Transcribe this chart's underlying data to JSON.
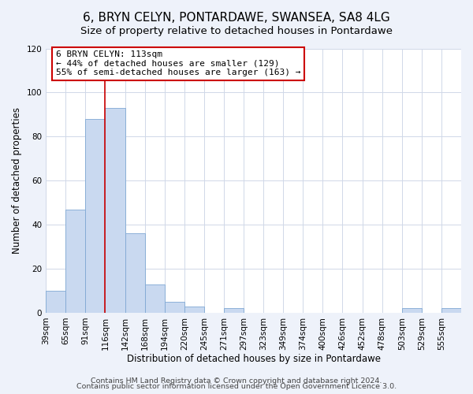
{
  "title": "6, BRYN CELYN, PONTARDAWE, SWANSEA, SA8 4LG",
  "subtitle": "Size of property relative to detached houses in Pontardawe",
  "xlabel": "Distribution of detached houses by size in Pontardawe",
  "ylabel": "Number of detached properties",
  "bin_labels": [
    "39sqm",
    "65sqm",
    "91sqm",
    "116sqm",
    "142sqm",
    "168sqm",
    "194sqm",
    "220sqm",
    "245sqm",
    "271sqm",
    "297sqm",
    "323sqm",
    "349sqm",
    "374sqm",
    "400sqm",
    "426sqm",
    "452sqm",
    "478sqm",
    "503sqm",
    "529sqm",
    "555sqm"
  ],
  "bar_heights": [
    10,
    47,
    88,
    93,
    36,
    13,
    5,
    3,
    0,
    2,
    0,
    0,
    0,
    0,
    0,
    0,
    0,
    0,
    2,
    0,
    2
  ],
  "bar_color": "#c9d9f0",
  "bar_edge_color": "#7fa8d4",
  "vline_x": 3,
  "vline_color": "#cc0000",
  "annotation_title": "6 BRYN CELYN: 113sqm",
  "annotation_line1": "← 44% of detached houses are smaller (129)",
  "annotation_line2": "55% of semi-detached houses are larger (163) →",
  "annotation_box_color": "#ffffff",
  "annotation_box_edge": "#cc0000",
  "ylim": [
    0,
    120
  ],
  "yticks": [
    0,
    20,
    40,
    60,
    80,
    100,
    120
  ],
  "footer1": "Contains HM Land Registry data © Crown copyright and database right 2024.",
  "footer2": "Contains public sector information licensed under the Open Government Licence 3.0.",
  "bg_color": "#eef2fa",
  "plot_bg_color": "#ffffff",
  "title_fontsize": 11,
  "subtitle_fontsize": 9.5,
  "axis_label_fontsize": 8.5,
  "tick_fontsize": 7.5,
  "footer_fontsize": 6.8,
  "annotation_fontsize": 8.0
}
